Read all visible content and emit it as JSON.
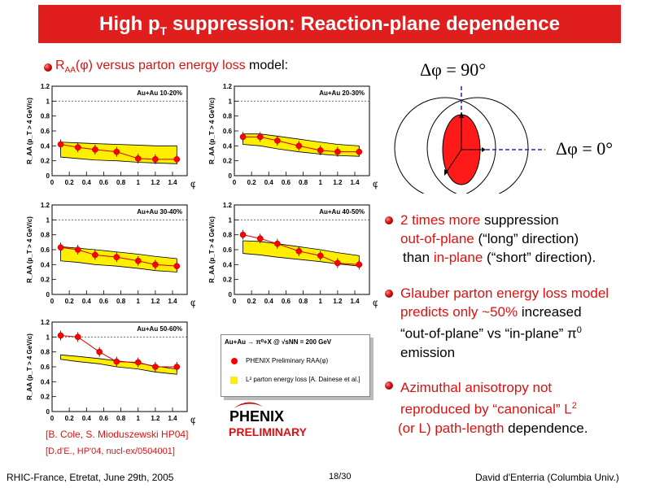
{
  "title": {
    "part1": "High p",
    "sub": "T",
    "part2": " suppression: Reaction-plane dependence"
  },
  "subhead": {
    "r": "R",
    "r_sub": "AA",
    "rest_red": "(φ) versus parton energy loss ",
    "rest_black": "model:"
  },
  "delta_labels": {
    "top": "Δφ = 90°",
    "right": "Δφ = 0°"
  },
  "bullets": [
    {
      "l1a": "2 times more",
      "l1b": " suppression",
      "l2a": "out-of-plane",
      "l2b": " (“long” direction)",
      "l3a": "than ",
      "l3b": "in-plane",
      "l3c": " (“short” direction)."
    },
    {
      "l1": "Glauber parton energy loss model",
      "l2a": "predicts only ~50%",
      "l2b": " increased",
      "l3": "“out-of-plane” vs “in-plane” π",
      "l3sup": "0",
      "l4": "emission"
    },
    {
      "l1": "Azimuthal anisotropy not",
      "l2a": "reproduced by “canonical” L",
      "l2sup": "2",
      "l3a": "(or L) path-length",
      "l3b": " dependence."
    }
  ],
  "refs": {
    "cole": "[B. Cole, S. Mioduszewski HP04]",
    "denterria": "[D.d'E., HP'04, nucl-ex/0504001]"
  },
  "logo": {
    "name": "PHENIX",
    "preliminary": "PRELIMINARY"
  },
  "legend": {
    "header": "Au+Au → π⁰+X @ √sNN = 200 GeV",
    "entry1": "PHENIX Preliminary RAA(φ)",
    "entry2": "L² parton energy loss [A. Dainese et al.]"
  },
  "footer": {
    "left": "RHIC-France, Etretat, June 29th, 2005",
    "center": "18/30",
    "right": "David d'Enterria (Columbia Univ.)"
  },
  "colors": {
    "accent": "#e11e1e",
    "band": "#ffee00",
    "marker": "#ff0000"
  },
  "chart_data": [
    {
      "type": "scatter",
      "title": "Au+Au 10-20%",
      "ylabel": "R_AA (p_T > 4 GeV/c)",
      "xlabel": "φ",
      "xlim": [
        0,
        1.57
      ],
      "ylim": [
        0,
        1.2
      ],
      "x_ticks": [
        "0",
        "0.2",
        "0.4",
        "0.6",
        "0.8",
        "1",
        "1.2",
        "1.4"
      ],
      "y_ticks": [
        "0",
        "0.2",
        "0.4",
        "0.6",
        "0.8",
        "1",
        "1.2"
      ],
      "x": [
        0.1,
        0.3,
        0.5,
        0.75,
        1.0,
        1.2,
        1.45
      ],
      "values": [
        0.42,
        0.38,
        0.35,
        0.32,
        0.23,
        0.22,
        0.22
      ],
      "band_low": [
        0.25,
        0.23,
        0.21,
        0.2,
        0.18,
        0.17,
        0.16
      ],
      "band_high": [
        0.45,
        0.44,
        0.43,
        0.42,
        0.41,
        0.4,
        0.4
      ]
    },
    {
      "type": "scatter",
      "title": "Au+Au 20-30%",
      "ylabel": "R_AA (p_T > 4 GeV/c)",
      "xlabel": "φ",
      "xlim": [
        0,
        1.57
      ],
      "ylim": [
        0,
        1.2
      ],
      "x_ticks": [
        "0",
        "0.2",
        "0.4",
        "0.6",
        "0.8",
        "1",
        "1.2",
        "1.4"
      ],
      "y_ticks": [
        "0",
        "0.2",
        "0.4",
        "0.6",
        "0.8",
        "1",
        "1.2"
      ],
      "x": [
        0.1,
        0.3,
        0.5,
        0.75,
        1.0,
        1.2,
        1.45
      ],
      "values": [
        0.52,
        0.52,
        0.47,
        0.4,
        0.34,
        0.32,
        0.32
      ],
      "band_low": [
        0.42,
        0.4,
        0.36,
        0.32,
        0.29,
        0.27,
        0.26
      ],
      "band_high": [
        0.56,
        0.56,
        0.53,
        0.49,
        0.45,
        0.42,
        0.4
      ]
    },
    {
      "type": "scatter",
      "title": "Au+Au 30-40%",
      "ylabel": "R_AA (p_T > 4 GeV/c)",
      "xlabel": "φ",
      "xlim": [
        0,
        1.57
      ],
      "ylim": [
        0,
        1.2
      ],
      "x_ticks": [
        "0",
        "0.2",
        "0.4",
        "0.6",
        "0.8",
        "1",
        "1.2",
        "1.4"
      ],
      "y_ticks": [
        "0",
        "0.2",
        "0.4",
        "0.6",
        "0.8",
        "1",
        "1.2"
      ],
      "x": [
        0.1,
        0.3,
        0.5,
        0.75,
        1.0,
        1.2,
        1.45
      ],
      "values": [
        0.63,
        0.6,
        0.53,
        0.5,
        0.45,
        0.4,
        0.38
      ],
      "band_low": [
        0.45,
        0.43,
        0.4,
        0.38,
        0.35,
        0.32,
        0.3
      ],
      "band_high": [
        0.64,
        0.62,
        0.6,
        0.57,
        0.54,
        0.51,
        0.48
      ]
    },
    {
      "type": "scatter",
      "title": "Au+Au 40-50%",
      "ylabel": "R_AA (p_T > 4 GeV/c)",
      "xlabel": "φ",
      "xlim": [
        0,
        1.57
      ],
      "ylim": [
        0,
        1.2
      ],
      "x_ticks": [
        "0",
        "0.2",
        "0.4",
        "0.6",
        "0.8",
        "1",
        "1.2",
        "1.4"
      ],
      "y_ticks": [
        "0",
        "0.2",
        "0.4",
        "0.6",
        "0.8",
        "1",
        "1.2"
      ],
      "x": [
        0.1,
        0.3,
        0.5,
        0.75,
        1.0,
        1.2,
        1.45
      ],
      "values": [
        0.8,
        0.75,
        0.68,
        0.58,
        0.52,
        0.42,
        0.4
      ],
      "band_low": [
        0.55,
        0.53,
        0.5,
        0.47,
        0.44,
        0.41,
        0.38
      ],
      "band_high": [
        0.72,
        0.71,
        0.68,
        0.64,
        0.6,
        0.56,
        0.52
      ]
    },
    {
      "type": "scatter",
      "title": "Au+Au 50-60%",
      "ylabel": "R_AA (p_T > 4 GeV/c)",
      "xlabel": "φ",
      "xlim": [
        0,
        1.57
      ],
      "ylim": [
        0,
        1.2
      ],
      "x_ticks": [
        "0",
        "0.2",
        "0.4",
        "0.6",
        "0.8",
        "1",
        "1.2",
        "1.4"
      ],
      "y_ticks": [
        "0",
        "0.2",
        "0.4",
        "0.6",
        "0.8",
        "1",
        "1.2"
      ],
      "x": [
        0.1,
        0.3,
        0.55,
        0.75,
        1.0,
        1.2,
        1.45
      ],
      "values": [
        1.02,
        1.0,
        0.8,
        0.67,
        0.66,
        0.6,
        0.6
      ],
      "band_low": [
        0.7,
        0.67,
        0.64,
        0.6,
        0.57,
        0.53,
        0.5
      ],
      "band_high": [
        0.76,
        0.74,
        0.71,
        0.68,
        0.65,
        0.61,
        0.57
      ]
    }
  ]
}
